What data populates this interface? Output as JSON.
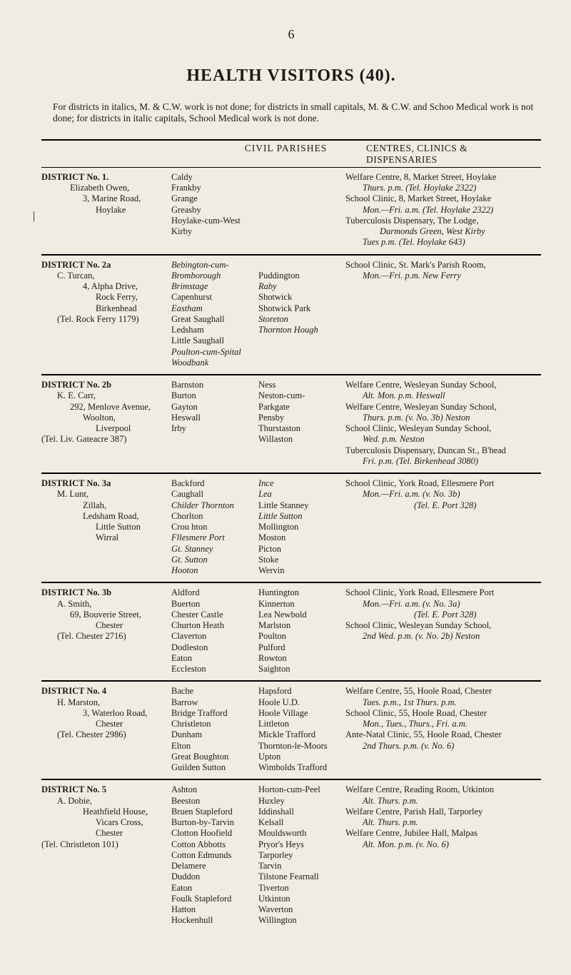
{
  "page_number": "6",
  "title": "HEALTH  VISITORS  (40).",
  "intro": "For districts in italics, M. & C.W. work is not done; for districts in small capitals, M. & C.W. and Schoo Medical work is not done; for districts in italic capitals, School Medical work is not done.",
  "header": {
    "mid": "CIVIL   PARISHES",
    "right": "CENTRES, CLINICS & DISPENSARIES"
  },
  "districts": [
    {
      "left": [
        {
          "t": "DISTRICT No. 1.",
          "cls": "d-head"
        },
        {
          "t": "Elizabeth Owen,",
          "cls": "indent2"
        },
        {
          "t": "3, Marine Road,",
          "cls": "indent3"
        },
        {
          "t": "Hoylake",
          "cls": "indent4"
        }
      ],
      "mid_a": [
        {
          "t": "Caldy"
        },
        {
          "t": "Frankby"
        },
        {
          "t": "Grange"
        },
        {
          "t": "Greasby"
        },
        {
          "t": "Hoylake-cum-West Kirby"
        }
      ],
      "mid_b": [
        {
          "t": ""
        },
        {
          "t": ""
        },
        {
          "t": ""
        },
        {
          "t": ""
        },
        {
          "t": ""
        }
      ],
      "right": [
        "Welfare Centre, 8, Market Street, Hoylake",
        "        Thurs. p.m.        (Tel. Hoylake 2322)",
        "School Clinic, 8, Market Street, Hoylake",
        "        Mon.—Fri. a.m.    (Tel. Hoylake 2322)",
        "Tuberculosis Dispensary, The Lodge,",
        "                Darmonds Green, West Kirby",
        "        Tues p.m.            (Tel. Hoylake 643)"
      ]
    },
    {
      "left": [
        {
          "t": "DISTRICT  No.  2a",
          "cls": "d-head"
        },
        {
          "t": "C. Turcan,",
          "cls": "indent1"
        },
        {
          "t": "4, Alpha Drive,",
          "cls": "indent3"
        },
        {
          "t": "Rock Ferry,",
          "cls": "indent4"
        },
        {
          "t": "Birkenhead",
          "cls": "indent4"
        },
        {
          "t": "(Tel. Rock Ferry 1179)",
          "cls": "indent1"
        }
      ],
      "mid_a": [
        {
          "t": "Bebington-cum-Bromborough",
          "ital": true
        },
        {
          "t": "Brimstage",
          "ital": true
        },
        {
          "t": "Capenhurst"
        },
        {
          "t": "Eastham",
          "ital": true
        },
        {
          "t": "Great Saughall"
        },
        {
          "t": "Ledsham"
        },
        {
          "t": "Little Saughall"
        },
        {
          "t": "Poulton-cum-Spital Woodbank",
          "ital": true
        }
      ],
      "mid_b": [
        {
          "t": ""
        },
        {
          "t": "Puddington"
        },
        {
          "t": "Raby",
          "ital": true
        },
        {
          "t": "Shotwick"
        },
        {
          "t": "Shotwick Park"
        },
        {
          "t": "Storeton",
          "ital": true
        },
        {
          "t": "Thornton Hough",
          "ital": true
        },
        {
          "t": ""
        }
      ],
      "right": [
        "School Clinic, St. Mark's Parish Room,",
        "        Mon.—Fri. p.m.                  New Ferry"
      ]
    },
    {
      "left": [
        {
          "t": "DISTRICT  No.  2b",
          "cls": "d-head"
        },
        {
          "t": "K. E. Carr,",
          "cls": "indent1"
        },
        {
          "t": "292, Menlove Avenue,",
          "cls": "indent2"
        },
        {
          "t": "Woolton,",
          "cls": "indent3"
        },
        {
          "t": "Liverpool",
          "cls": "indent4"
        },
        {
          "t": "(Tel. Liv. Gateacre 387)",
          "cls": ""
        }
      ],
      "mid_a": [
        {
          "t": "Barnston"
        },
        {
          "t": "Burton"
        },
        {
          "t": "Gayton"
        },
        {
          "t": "Heswall"
        },
        {
          "t": "Irby"
        }
      ],
      "mid_b": [
        {
          "t": "Ness"
        },
        {
          "t": "Neston-cum-"
        },
        {
          "t": "Parkgate"
        },
        {
          "t": "Pensby"
        },
        {
          "t": "Thurstaston"
        },
        {
          "t": "Willaston"
        }
      ],
      "right": [
        "Welfare Centre, Wesleyan Sunday School,",
        "        Alt. Mon. p.m.                        Heswall",
        "Welfare Centre, Wesleyan Sunday School,",
        "        Thurs. p.m. (v. No. 3b)            Neston",
        "School Clinic, Wesleyan Sunday School,",
        "        Wed. p.m.                              Neston",
        "Tuberculosis Dispensary, Duncan St., B'head",
        "        Fri. p.m.        (Tel. Birkenhead 3080)"
      ]
    },
    {
      "left": [
        {
          "t": "DISTRICT  No.  3a",
          "cls": "d-head"
        },
        {
          "t": "M. Lunt,",
          "cls": "indent1"
        },
        {
          "t": "Zillah,",
          "cls": "indent3"
        },
        {
          "t": "Ledsham Road,",
          "cls": "indent3"
        },
        {
          "t": "Little Sutton",
          "cls": "indent4"
        },
        {
          "t": "Wirral",
          "cls": "indent4"
        }
      ],
      "mid_a": [
        {
          "t": "Backford"
        },
        {
          "t": "Caughall"
        },
        {
          "t": "Childer Thornton",
          "ital": true
        },
        {
          "t": "Chorlton"
        },
        {
          "t": "Crou hton"
        },
        {
          "t": "Fllesmere Port",
          "ital": true
        },
        {
          "t": "Gt. Stanney",
          "ital": true
        },
        {
          "t": "Gt. Sutton",
          "ital": true
        },
        {
          "t": "Hooton",
          "ital": true
        }
      ],
      "mid_b": [
        {
          "t": "Ince",
          "ital": true
        },
        {
          "t": "Lea",
          "ital": true
        },
        {
          "t": "Little Stanney"
        },
        {
          "t": "Little Sutton",
          "ital": true
        },
        {
          "t": "Mollington"
        },
        {
          "t": "Moston"
        },
        {
          "t": "Picton"
        },
        {
          "t": "Stoke"
        },
        {
          "t": "Wervin"
        }
      ],
      "right": [
        "School Clinic, York Road, Ellesmere Port",
        "        Mon.—Fri. a.m. (v. No. 3b)",
        "                                (Tel. E. Port 328)"
      ]
    },
    {
      "left": [
        {
          "t": "DISTRICT  No.  3b",
          "cls": "d-head"
        },
        {
          "t": "A. Smith,",
          "cls": "indent1"
        },
        {
          "t": "69, Bouverie Street,",
          "cls": "indent2"
        },
        {
          "t": "Chester",
          "cls": "indent4"
        },
        {
          "t": "(Tel. Chester 2716)",
          "cls": "indent1"
        }
      ],
      "mid_a": [
        {
          "t": "Aldford"
        },
        {
          "t": "Buerton"
        },
        {
          "t": "Chester Castle"
        },
        {
          "t": "Churton Heath"
        },
        {
          "t": "Claverton"
        },
        {
          "t": "Dodleston"
        },
        {
          "t": "Eaton"
        },
        {
          "t": "Eccleston"
        }
      ],
      "mid_b": [
        {
          "t": "Huntington"
        },
        {
          "t": "Kinnerton"
        },
        {
          "t": "Lea Newbold"
        },
        {
          "t": "Marlston"
        },
        {
          "t": "Poulton"
        },
        {
          "t": "Pulford"
        },
        {
          "t": "Rowton"
        },
        {
          "t": "Saighton"
        }
      ],
      "right": [
        "School Clinic, York Road, Ellesmere Port",
        "        Mon.—Fri. a.m. (v. No. 3a)",
        "                                (Tel. E. Port 328)",
        "School Clinic, Wesleyan Sunday School,",
        "        2nd Wed. p.m. (v. No. 2b)        Neston"
      ]
    },
    {
      "left": [
        {
          "t": "DISTRICT  No.  4",
          "cls": "d-head"
        },
        {
          "t": "H. Marston,",
          "cls": "indent1"
        },
        {
          "t": "3, Waterloo Road,",
          "cls": "indent3"
        },
        {
          "t": "Chester",
          "cls": "indent4"
        },
        {
          "t": "(Tel. Chester 2986)",
          "cls": "indent1"
        }
      ],
      "mid_a": [
        {
          "t": "Bache"
        },
        {
          "t": "Barrow"
        },
        {
          "t": "Bridge Trafford"
        },
        {
          "t": "Christleton"
        },
        {
          "t": "Dunham"
        },
        {
          "t": "Elton"
        },
        {
          "t": "Great Boughton"
        },
        {
          "t": "Guilden Sutton"
        }
      ],
      "mid_b": [
        {
          "t": "Hapsford"
        },
        {
          "t": "Hoole U.D."
        },
        {
          "t": "Hoole Village"
        },
        {
          "t": "Littleton"
        },
        {
          "t": "Mickle Trafford"
        },
        {
          "t": "Thornton-le-Moors"
        },
        {
          "t": "Upton"
        },
        {
          "t": "Wimbolds Trafford"
        }
      ],
      "right": [
        "Welfare Centre, 55, Hoole Road, Chester",
        "        Tues. p.m., 1st Thurs. p.m.",
        "School Clinic, 55, Hoole Road, Chester",
        "        Mon., Tues., Thurs., Fri. a.m.",
        "Ante-Natal Clinic, 55, Hoole Road, Chester",
        "        2nd Thurs. p.m. (v. No. 6)"
      ]
    },
    {
      "left": [
        {
          "t": "DISTRICT  No.  5",
          "cls": "d-head"
        },
        {
          "t": "A. Dobie,",
          "cls": "indent1"
        },
        {
          "t": "Heathfield House,",
          "cls": "indent3"
        },
        {
          "t": "Vicars Cross,",
          "cls": "indent4"
        },
        {
          "t": "Chester",
          "cls": "indent4"
        },
        {
          "t": "(Tel. Christleton 101)",
          "cls": ""
        }
      ],
      "mid_a": [
        {
          "t": "Ashton"
        },
        {
          "t": "Beeston"
        },
        {
          "t": "Bruen Stapleford"
        },
        {
          "t": "Burton-by-Tarvin"
        },
        {
          "t": "Clotton Hoofield"
        },
        {
          "t": "Cotton Abbotts"
        },
        {
          "t": "Cotton Edmunds"
        },
        {
          "t": "Delamere"
        },
        {
          "t": "Duddon"
        },
        {
          "t": "Eaton"
        },
        {
          "t": "Foulk Stapleford"
        },
        {
          "t": "Hatton"
        },
        {
          "t": "Hockenhull"
        }
      ],
      "mid_b": [
        {
          "t": "Horton-cum-Peel"
        },
        {
          "t": "Huxley"
        },
        {
          "t": "Iddinshall"
        },
        {
          "t": "Kelsall"
        },
        {
          "t": "Mouldsworth"
        },
        {
          "t": "Pryor's Heys"
        },
        {
          "t": "Tarporley"
        },
        {
          "t": "Tarvin"
        },
        {
          "t": "Tilstone Fearnall"
        },
        {
          "t": "Tiverton"
        },
        {
          "t": "Utkinton"
        },
        {
          "t": "Waverton"
        },
        {
          "t": "Willington"
        }
      ],
      "right": [
        "Welfare Centre, Reading Room, Utkinton",
        "        Alt. Thurs. p.m.",
        "Welfare Centre, Parish Hall, Tarporley",
        "        Alt. Thurs. p.m.",
        "Welfare Centre, Jubilee Hall, Malpas",
        "        Alt. Mon. p.m. (v. No. 6)"
      ]
    }
  ]
}
